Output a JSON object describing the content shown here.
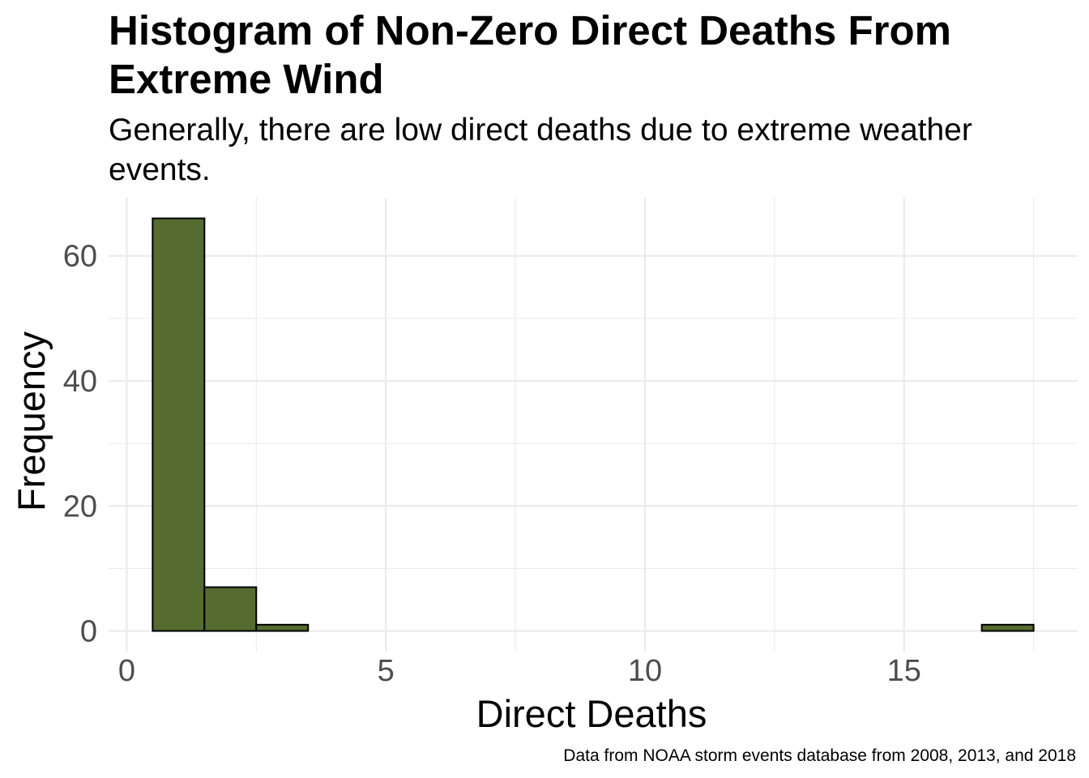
{
  "chart_data": {
    "type": "bar",
    "title": "Histogram of Non-Zero Direct Deaths From Extreme Wind",
    "subtitle": "Generally, there are low direct deaths due to extreme weather events.",
    "caption": "Data from NOAA storm events database from 2008, 2013, and 2018",
    "xlabel": "Direct Deaths",
    "ylabel": "Frequency",
    "bin_width": 1,
    "bins": [
      {
        "x": 1,
        "count": 66
      },
      {
        "x": 2,
        "count": 7
      },
      {
        "x": 3,
        "count": 1
      },
      {
        "x": 4,
        "count": 0
      },
      {
        "x": 5,
        "count": 0
      },
      {
        "x": 6,
        "count": 0
      },
      {
        "x": 7,
        "count": 0
      },
      {
        "x": 8,
        "count": 0
      },
      {
        "x": 9,
        "count": 0
      },
      {
        "x": 10,
        "count": 0
      },
      {
        "x": 11,
        "count": 0
      },
      {
        "x": 12,
        "count": 0
      },
      {
        "x": 13,
        "count": 0
      },
      {
        "x": 14,
        "count": 0
      },
      {
        "x": 15,
        "count": 0
      },
      {
        "x": 16,
        "count": 0
      },
      {
        "x": 17,
        "count": 1
      }
    ],
    "x_ticks": [
      0,
      5,
      10,
      15
    ],
    "y_ticks": [
      0,
      20,
      40,
      60
    ],
    "xlim": [
      -0.35,
      18.35
    ],
    "ylim": [
      -3.3,
      69.3
    ],
    "grid": true,
    "fill_color": "#556B2F",
    "outline_color": "#000000",
    "grid_color": "#ebebeb"
  }
}
